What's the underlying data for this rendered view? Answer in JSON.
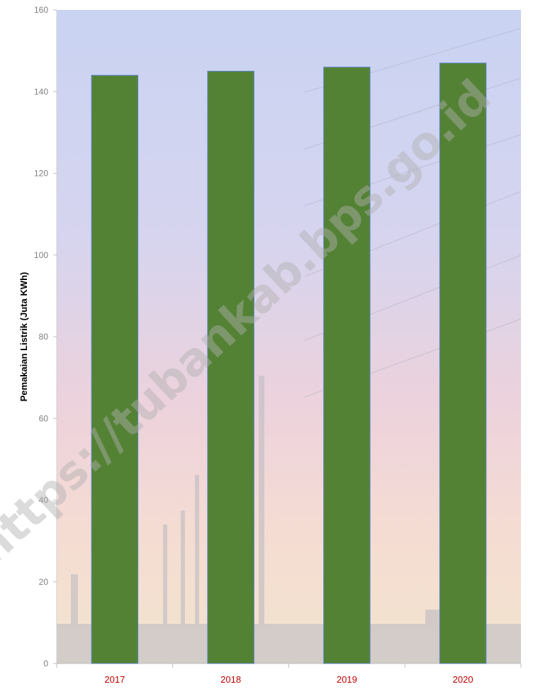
{
  "chart_data": {
    "type": "bar",
    "categories": [
      "2017",
      "2018",
      "2019",
      "2020"
    ],
    "values": [
      144,
      145,
      146,
      147
    ],
    "title": "",
    "xlabel": "",
    "ylabel": "Pemakaian Listrik (Juta KWh)",
    "ylim": [
      0,
      160
    ],
    "yticks": [
      0,
      20,
      40,
      60,
      80,
      100,
      120,
      140,
      160
    ],
    "grid": false,
    "bar_color": "#548235",
    "category_label_color": "#c00000"
  },
  "watermark": "https://tubankab.bps.go.id"
}
